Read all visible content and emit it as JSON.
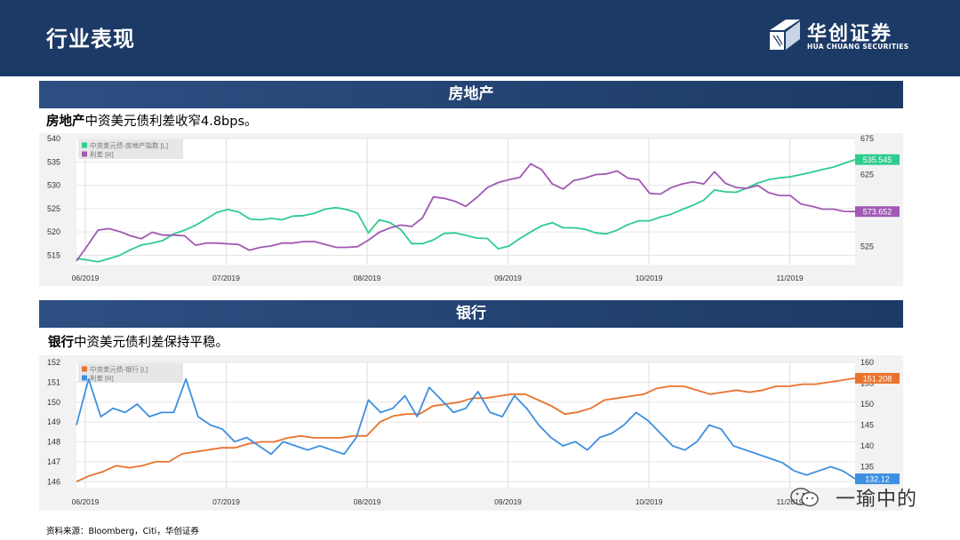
{
  "header": {
    "title": "行业表现",
    "logo_cn": "华创证券",
    "logo_en": "HUA CHUANG SECURITIES"
  },
  "colors": {
    "header_bg": "#1c3a66",
    "green": "#2ecc8e",
    "purple": "#a05ab4",
    "orange": "#e8732c",
    "blue": "#3d8fe0"
  },
  "sections": [
    {
      "title": "房地产",
      "subtitle_bold": "房地产",
      "subtitle_rest": "中资美元债利差收窄4.8bps。"
    },
    {
      "title": "银行",
      "subtitle_bold": "银行",
      "subtitle_rest": "中资美元债利差保持平稳。"
    }
  ],
  "source": "资料来源：Bloomberg，Citi，华创证券",
  "watermark": "一瑜中的",
  "chart_data": [
    {
      "type": "line",
      "x_ticks": [
        "06/2019",
        "07/2019",
        "08/2019",
        "09/2019",
        "10/2019",
        "11/2019"
      ],
      "ylim_left": [
        513,
        540
      ],
      "ylim_right": [
        500,
        675
      ],
      "yticks_left": [
        515,
        520,
        525,
        530,
        535,
        540
      ],
      "yticks_right": [
        525,
        625,
        675
      ],
      "grid": true,
      "legend_position": "top-left",
      "series": [
        {
          "name": "中资美元债-房地产指数 [L]",
          "axis": "left",
          "color": "#2ecc8e",
          "last_label": "535.545",
          "values": [
            514.3,
            514.0,
            513.6,
            514.3,
            515.0,
            516.2,
            517.2,
            517.6,
            518.2,
            519.6,
            520.4,
            521.4,
            522.8,
            524.2,
            524.8,
            524.3,
            522.8,
            522.6,
            522.9,
            522.6,
            523.4,
            523.5,
            524.0,
            524.9,
            525.2,
            524.8,
            524.0,
            519.8,
            522.6,
            522.0,
            520.5,
            517.5,
            517.5,
            518.3,
            519.7,
            519.8,
            519.3,
            518.7,
            518.6,
            516.4,
            517.0,
            518.6,
            520.0,
            521.3,
            522.0,
            520.9,
            520.9,
            520.6,
            519.8,
            519.6,
            520.4,
            521.6,
            522.4,
            522.4,
            523.2,
            523.8,
            524.8,
            525.7,
            526.8,
            529.0,
            528.6,
            528.5,
            529.4,
            530.5,
            531.2,
            531.6,
            531.8,
            532.3,
            532.8,
            533.4,
            533.9,
            534.7,
            535.5
          ]
        },
        {
          "name": "利差 [R]",
          "axis": "right",
          "color": "#a05ab4",
          "last_label": "573.652",
          "values": [
            505,
            526,
            548,
            550,
            546,
            540,
            536,
            545,
            541,
            541,
            540,
            527,
            530,
            530,
            529,
            528,
            520,
            524,
            526,
            530,
            530,
            532,
            532,
            528,
            524,
            524,
            525,
            534,
            545,
            551,
            555,
            553,
            565,
            594,
            592,
            588,
            581,
            593,
            607,
            614,
            618,
            621,
            640,
            632,
            612,
            605,
            617,
            620,
            625,
            626,
            630,
            620,
            618,
            599,
            598,
            607,
            612,
            615,
            612,
            629,
            613,
            607,
            606,
            610,
            600,
            596,
            596,
            584,
            581,
            577,
            577,
            574,
            573.7
          ]
        }
      ]
    },
    {
      "type": "line",
      "x_ticks": [
        "06/2019",
        "07/2019",
        "08/2019",
        "09/2019",
        "10/2019",
        "11/2019"
      ],
      "ylim_left": [
        145.7,
        152
      ],
      "ylim_right": [
        130,
        160
      ],
      "yticks_left": [
        146,
        147,
        148,
        149,
        150,
        151,
        152
      ],
      "yticks_right": [
        135,
        140,
        145,
        150,
        155,
        160
      ],
      "grid": true,
      "legend_position": "top-left",
      "series": [
        {
          "name": "中资美元债-银行 [L]",
          "axis": "left",
          "color": "#e8732c",
          "last_label": "151.208",
          "values": [
            146.0,
            146.3,
            146.5,
            146.8,
            146.7,
            146.8,
            147.0,
            147.0,
            147.4,
            147.5,
            147.6,
            147.7,
            147.7,
            147.9,
            148.0,
            148.0,
            148.2,
            148.3,
            148.2,
            148.2,
            148.2,
            148.3,
            148.3,
            149.0,
            149.3,
            149.4,
            149.4,
            149.8,
            149.9,
            150.0,
            150.2,
            150.2,
            150.3,
            150.4,
            150.4,
            150.1,
            149.8,
            149.4,
            149.5,
            149.7,
            150.1,
            150.2,
            150.3,
            150.4,
            150.7,
            150.8,
            150.8,
            150.6,
            150.4,
            150.5,
            150.6,
            150.5,
            150.6,
            150.8,
            150.8,
            150.9,
            150.9,
            151.0,
            151.1,
            151.2
          ]
        },
        {
          "name": "利差 [R]",
          "axis": "right",
          "color": "#3d8fe0",
          "last_label": "132.12",
          "values": [
            145,
            156,
            147,
            149,
            148,
            150,
            147,
            148,
            148,
            156,
            147,
            145,
            144,
            141,
            142,
            140,
            138,
            141,
            140,
            139,
            140,
            139,
            138,
            142,
            151,
            148,
            149,
            152,
            147,
            154,
            151,
            148,
            149,
            153,
            148,
            147,
            152,
            149,
            145,
            142,
            140,
            141,
            139,
            142,
            143,
            145,
            148,
            146,
            143,
            140,
            139,
            141,
            145,
            144,
            140,
            139,
            138,
            137,
            136,
            134,
            133,
            134,
            135,
            134,
            132.1
          ]
        }
      ]
    }
  ]
}
